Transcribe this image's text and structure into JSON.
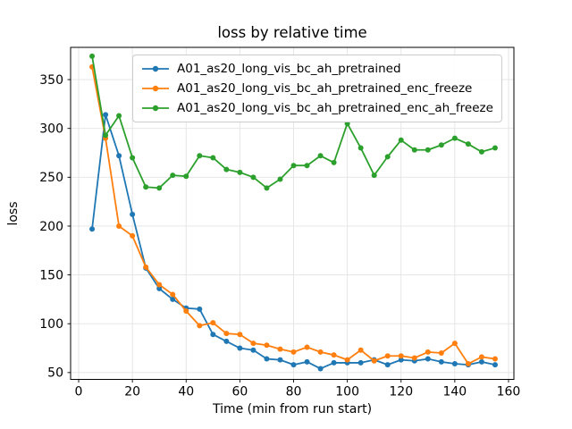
{
  "figure": {
    "title": "loss by relative time",
    "background": "#ffffff"
  },
  "chart_data": {
    "type": "line",
    "title": "loss by relative time",
    "xlabel": "Time (min from run start)",
    "ylabel": "loss",
    "grid": true,
    "grid_color": "#e3e3e3",
    "axis_color": "#000000",
    "legend_position": "upper center",
    "x_ticks": [
      0,
      20,
      40,
      60,
      80,
      100,
      120,
      140,
      160
    ],
    "y_ticks": [
      50,
      100,
      150,
      200,
      250,
      300,
      350
    ],
    "xlim": [
      -3,
      162
    ],
    "ylim": [
      43,
      383
    ],
    "x": [
      5,
      10,
      15,
      20,
      25,
      30,
      35,
      40,
      45,
      50,
      55,
      60,
      65,
      70,
      75,
      80,
      85,
      90,
      95,
      100,
      105,
      110,
      115,
      120,
      125,
      130,
      135,
      140,
      145,
      150,
      155
    ],
    "series": [
      {
        "name": "A01_as20_long_vis_bc_ah_pretrained",
        "color": "#1f77b4",
        "values": [
          197,
          314,
          272,
          212,
          157,
          136,
          125,
          116,
          115,
          89,
          82,
          75,
          73,
          64,
          63,
          58,
          61,
          54,
          60,
          60,
          60,
          63,
          58,
          63,
          62,
          64,
          61,
          59,
          58,
          61,
          58
        ]
      },
      {
        "name": "A01_as20_long_vis_bc_ah_pretrained_enc_freeze",
        "color": "#ff7f0e",
        "values": [
          363,
          290,
          200,
          190,
          158,
          140,
          130,
          113,
          98,
          101,
          90,
          89,
          80,
          78,
          74,
          71,
          76,
          71,
          68,
          63,
          73,
          62,
          67,
          67,
          65,
          71,
          70,
          80,
          59,
          66,
          64
        ]
      },
      {
        "name": "A01_as20_long_vis_bc_ah_pretrained_enc_ah_freeze",
        "color": "#2ca02c",
        "values": [
          374,
          293,
          313,
          270,
          240,
          239,
          252,
          251,
          272,
          270,
          258,
          255,
          250,
          239,
          248,
          262,
          262,
          272,
          265,
          305,
          280,
          252,
          271,
          288,
          278,
          278,
          283,
          290,
          284,
          276,
          280
        ]
      }
    ]
  }
}
